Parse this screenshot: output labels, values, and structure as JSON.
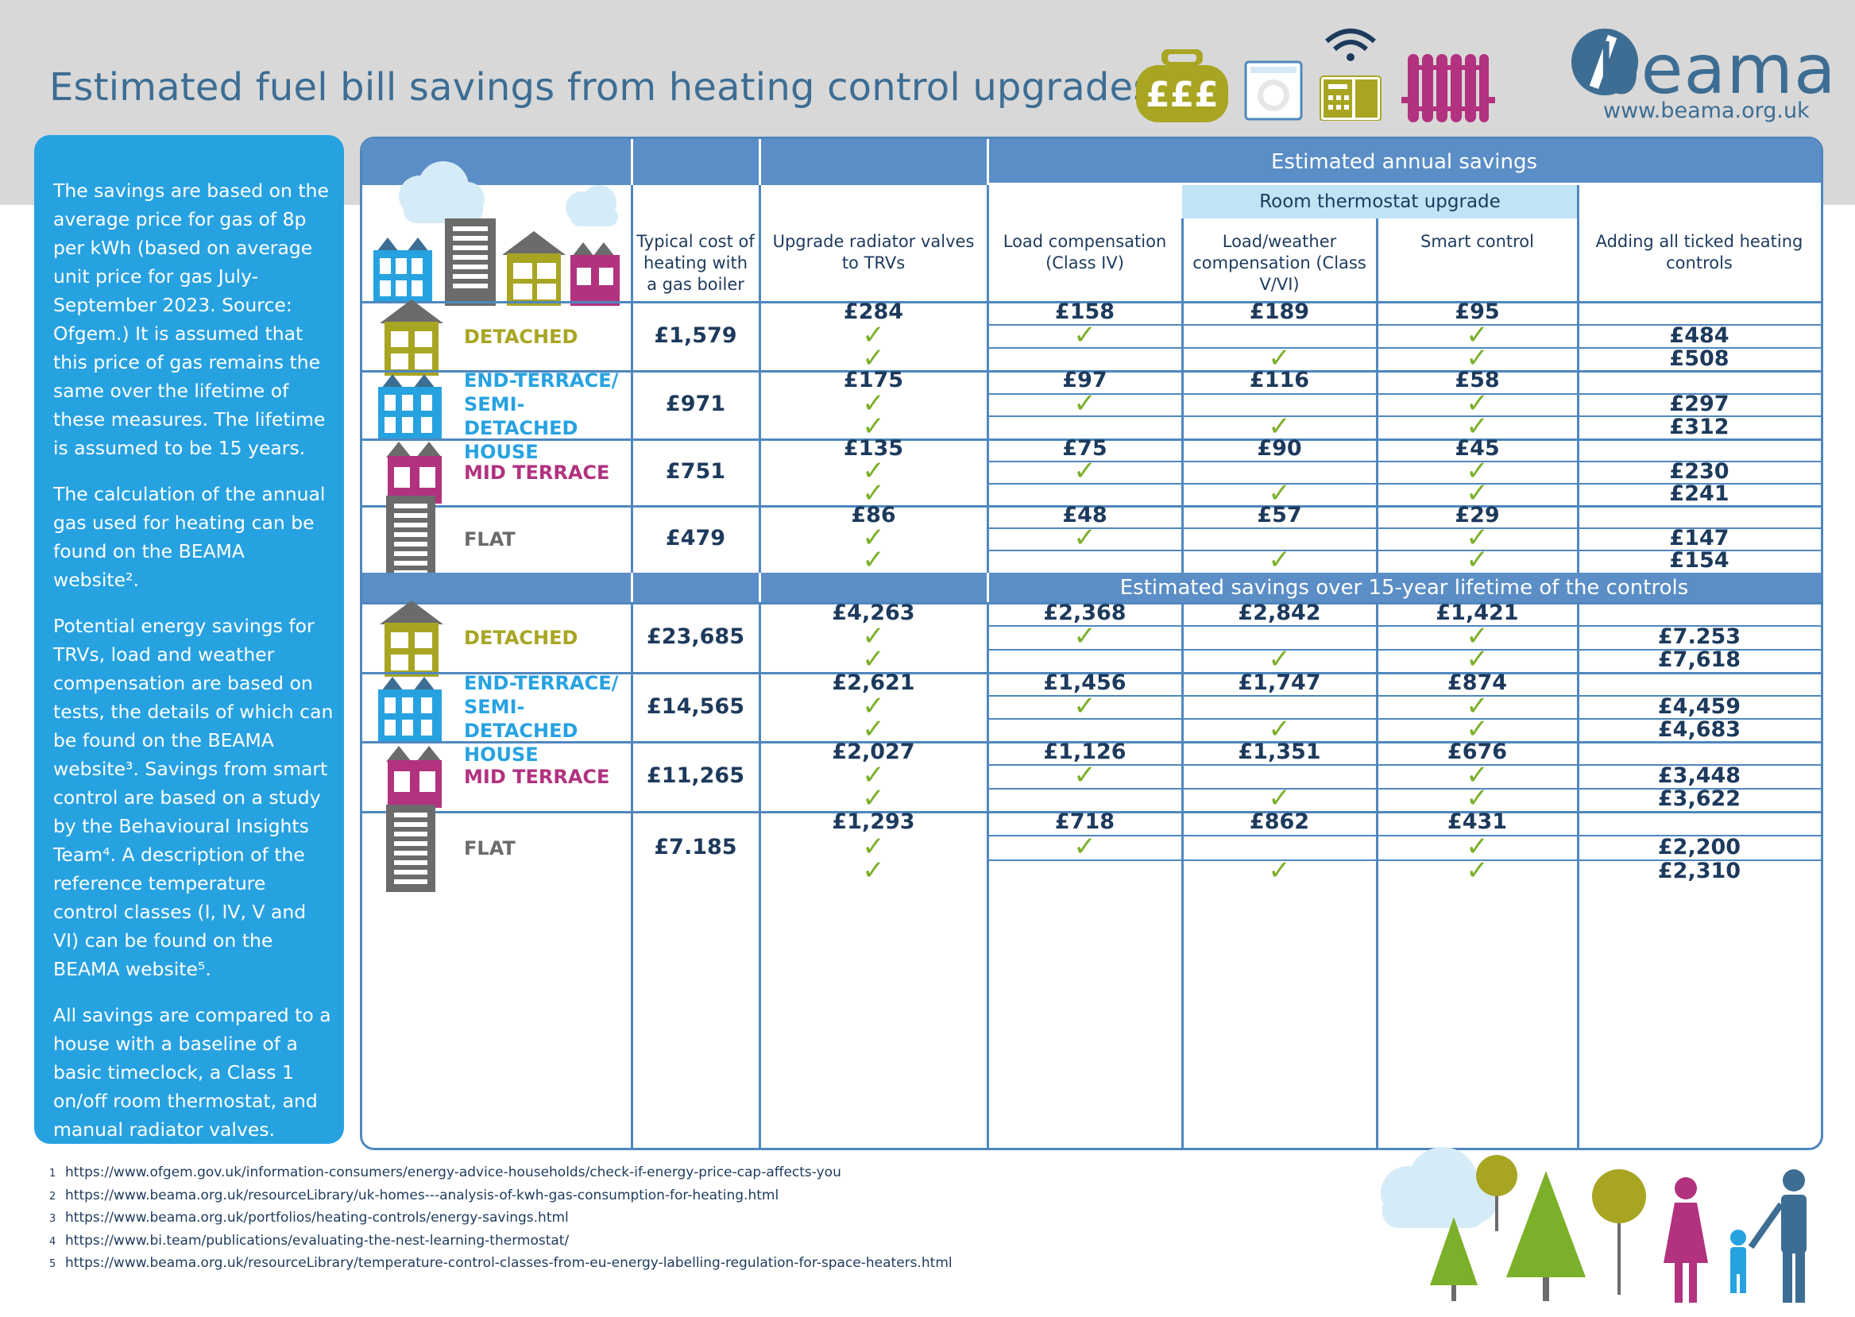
{
  "title": "Estimated fuel bill savings from heating control upgrades",
  "logo": {
    "name": "beama",
    "url": "www.beama.org.uk"
  },
  "icons": {
    "money": "£££",
    "names": [
      "money-bag-icon",
      "thermostat-dial-icon",
      "smart-control-wifi-icon",
      "radiator-icon"
    ]
  },
  "sidebar": {
    "paragraphs": [
      "The savings are based on the average price for gas of 8p per kWh (based on average unit price for gas July-September 2023.  Source: Ofgem.)  It is assumed that this price of gas remains the same over the lifetime of these measures. The lifetime is assumed to be 15 years.",
      "The calculation of the annual gas used for heating can be found on the BEAMA website².",
      "Potential energy savings for TRVs, load and weather compensation are based on tests, the details of which can be found on the BEAMA website³.  Savings from smart control are based on a study by the Behavioural Insights Team⁴. A description of the reference temperature control classes (I, IV, V and VI) can be found on the BEAMA website⁵.",
      "All savings are compared to a house with a baseline of a basic timeclock, a Class 1 on/off room thermostat, and manual radiator valves."
    ]
  },
  "table": {
    "band_annual": "Estimated annual savings",
    "band_lifetime": "Estimated savings over 15-year lifetime of the controls",
    "room_thermostat": "Room thermostat upgrade",
    "headers": {
      "typical": "Typical cost of heating with a gas boiler",
      "trv": "Upgrade radiator valves to TRVs",
      "load": "Load compensation (Class IV)",
      "weather": "Load/weather compensation (Class V/VI)",
      "smart": "Smart control",
      "all": "Adding all ticked heating controls"
    },
    "tick": "✓",
    "annual": [
      {
        "label": "DETACHED",
        "color": "#a8a523",
        "typical": "£1,579",
        "savings": [
          "£284",
          "£158",
          "£189",
          "£95"
        ],
        "totals": [
          "£484",
          "£508"
        ]
      },
      {
        "label": "END-TERRACE/ SEMI-DETACHED HOUSE",
        "color": "#27a2e1",
        "typical": "£971",
        "savings": [
          "£175",
          "£97",
          "£116",
          "£58"
        ],
        "totals": [
          "£297",
          "£312"
        ]
      },
      {
        "label": "MID TERRACE",
        "color": "#b2327f",
        "typical": "£751",
        "savings": [
          "£135",
          "£75",
          "£90",
          "£45"
        ],
        "totals": [
          "£230",
          "£241"
        ]
      },
      {
        "label": "FLAT",
        "color": "#6b6b6b",
        "typical": "£479",
        "savings": [
          "£86",
          "£48",
          "£57",
          "£29"
        ],
        "totals": [
          "£147",
          "£154"
        ]
      }
    ],
    "lifetime": [
      {
        "label": "DETACHED",
        "color": "#a8a523",
        "typical": "£23,685",
        "savings": [
          "£4,263",
          "£2,368",
          "£2,842",
          "£1,421"
        ],
        "totals": [
          "£7.253",
          "£7,618"
        ]
      },
      {
        "label": "END-TERRACE/ SEMI-DETACHED HOUSE",
        "color": "#27a2e1",
        "typical": "£14,565",
        "savings": [
          "£2,621",
          "£1,456",
          "£1,747",
          "£874"
        ],
        "totals": [
          "£4,459",
          "£4,683"
        ]
      },
      {
        "label": "MID TERRACE",
        "color": "#b2327f",
        "typical": "£11,265",
        "savings": [
          "£2,027",
          "£1,126",
          "£1,351",
          "£676"
        ],
        "totals": [
          "£3,448",
          "£3,622"
        ]
      },
      {
        "label": "FLAT",
        "color": "#6b6b6b",
        "typical": "£7.185",
        "savings": [
          "£1,293",
          "£718",
          "£862",
          "£431"
        ],
        "totals": [
          "£2,200",
          "£2,310"
        ]
      }
    ]
  },
  "footnotes": [
    {
      "n": "1",
      "text": "https://www.ofgem.gov.uk/information-consumers/energy-advice-households/check-if-energy-price-cap-affects-you"
    },
    {
      "n": "2",
      "text": "https://www.beama.org.uk/resourceLibrary/uk-homes---analysis-of-kwh-gas-consumption-for-heating.html"
    },
    {
      "n": "3",
      "text": "https://www.beama.org.uk/portfolios/heating-controls/energy-savings.html"
    },
    {
      "n": "4",
      "text": "https://www.bi.team/publications/evaluating-the-nest-learning-thermostat/"
    },
    {
      "n": "5",
      "text": "https://www.beama.org.uk/resourceLibrary/temperature-control-classes-from-eu-energy-labelling-regulation-for-space-heaters.html"
    }
  ],
  "colors": {
    "brand": "#3d6d93",
    "sidebar": "#27a2e1",
    "table_border": "#4f87be",
    "tick": "#7cb02a",
    "band": "#5b8ec6",
    "room_band": "#bfe4f6"
  }
}
